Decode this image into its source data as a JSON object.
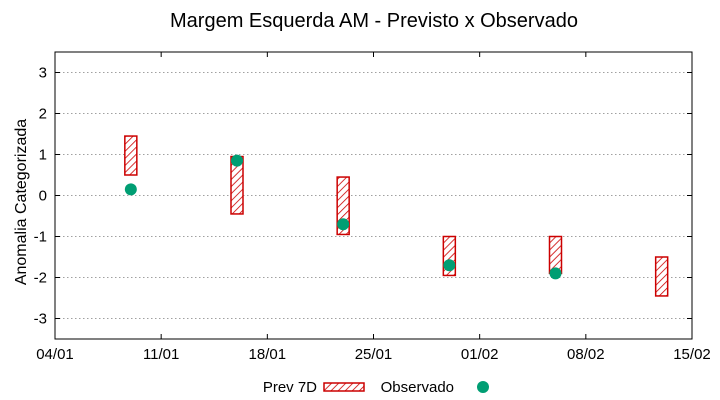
{
  "chart_data": {
    "type": "range-bar-with-points",
    "title": "Margem Esquerda AM - Previsto x Observado",
    "xlabel": "",
    "ylabel": "Anomalia Categorizada",
    "x_ticks": [
      "04/01",
      "11/01",
      "18/01",
      "25/01",
      "01/02",
      "08/02",
      "15/02"
    ],
    "xlim": [
      "04/01",
      "15/02"
    ],
    "ylim": [
      -3.5,
      3.5
    ],
    "y_ticks": [
      -3,
      -2,
      -1,
      0,
      1,
      2,
      3
    ],
    "grid": true,
    "legend": {
      "position": "bottom",
      "entries": [
        {
          "label": "Prev 7D",
          "style": "hatched-box"
        },
        {
          "label": "Observado",
          "style": "dot"
        }
      ]
    },
    "colors": {
      "box_stroke": "#cc0000",
      "box_hatch": "#cc0000",
      "point": "#009e73",
      "grid": "#a0a0a0"
    },
    "series": [
      {
        "name": "Prev 7D",
        "kind": "range",
        "points": [
          {
            "x": "09/01",
            "low": 0.5,
            "high": 1.45
          },
          {
            "x": "16/01",
            "low": -0.45,
            "high": 0.95
          },
          {
            "x": "23/01",
            "low": -0.95,
            "high": 0.45
          },
          {
            "x": "30/01",
            "low": -1.95,
            "high": -1.0
          },
          {
            "x": "06/02",
            "low": -1.9,
            "high": -1.0
          },
          {
            "x": "13/02",
            "low": -2.45,
            "high": -1.5
          }
        ]
      },
      {
        "name": "Observado",
        "kind": "point",
        "points": [
          {
            "x": "09/01",
            "y": 0.15
          },
          {
            "x": "16/01",
            "y": 0.85
          },
          {
            "x": "23/01",
            "y": -0.7
          },
          {
            "x": "30/01",
            "y": -1.7
          },
          {
            "x": "06/02",
            "y": -1.9
          }
        ]
      }
    ]
  }
}
